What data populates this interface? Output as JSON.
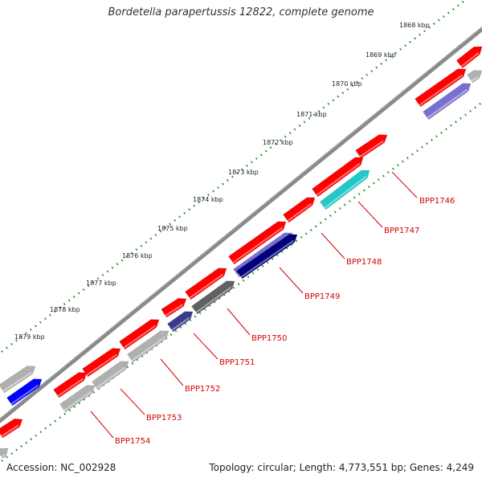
{
  "title": "Bordetella parapertussis 12822, complete genome",
  "accession": "Accession: NC_002928",
  "summary": "Topology: circular; Length: 4,773,551 bp; Genes: 4,249",
  "ticks": [
    "1868 kbp",
    "1869 kbp",
    "1870 kbp",
    "1871 kbp",
    "1872 kbp",
    "1873 kbp",
    "1874 kbp",
    "1875 kbp",
    "1876 kbp",
    "1877 kbp",
    "1878 kbp",
    "1879 kbp"
  ],
  "gene_labels": [
    "BPP1746",
    "BPP1747",
    "BPP1748",
    "BPP1749",
    "BPP1750",
    "BPP1751",
    "BPP1752",
    "BPP1753",
    "BPP1754"
  ],
  "colors": {
    "forward": "#ff0000",
    "reverse_grey": "#b0b0b0",
    "dark_grey": "#606060",
    "blue": "#0000ff",
    "navy": "#00007a",
    "slate": "#3a3a8a",
    "lavender": "#7a6fd0",
    "cyan": "#20c8c8",
    "backbone": "#888888",
    "tick_dots": "#1a8a1a",
    "label": "#d40000"
  }
}
